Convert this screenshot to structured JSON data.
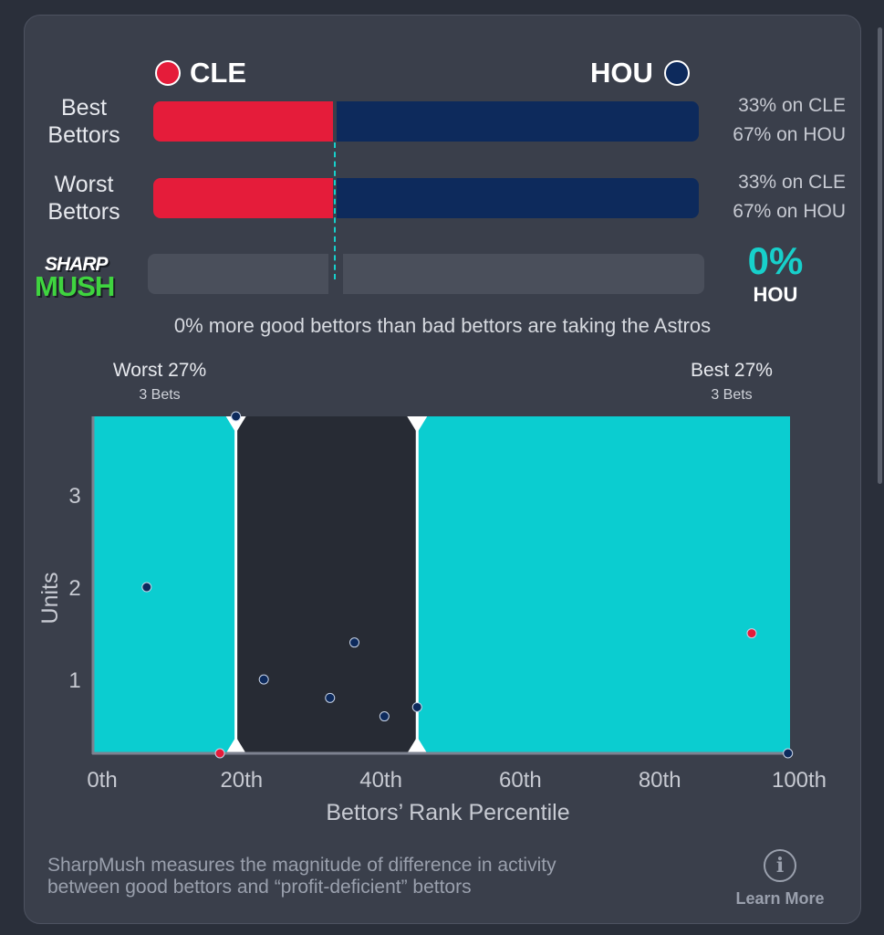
{
  "teams": {
    "left": {
      "abbr": "CLE",
      "color": "#e51c3a"
    },
    "right": {
      "abbr": "HOU",
      "color": "#0d2a5c"
    }
  },
  "rows": [
    {
      "label_line1": "Best",
      "label_line2": "Bettors",
      "left_pct": 33,
      "right_pct": 67,
      "left_text": "33% on CLE",
      "right_text": "67% on HOU"
    },
    {
      "label_line1": "Worst",
      "label_line2": "Bettors",
      "left_pct": 33,
      "right_pct": 67,
      "left_text": "33% on CLE",
      "right_text": "67% on HOU"
    }
  ],
  "logo": {
    "line1": "SHARP",
    "line2": "MUSH"
  },
  "sharpmush": {
    "value": "0%",
    "team": "HOU",
    "accent": "#17d0cb"
  },
  "summary": "0% more good bettors than bad bettors are taking the Astros",
  "zones": {
    "worst": {
      "title": "Worst 27%",
      "sub": "3 Bets"
    },
    "best": {
      "title": "Best 27%",
      "sub": "3 Bets"
    }
  },
  "chart_data": {
    "type": "scatter",
    "xlabel": "Bettors’ Rank Percentile",
    "ylabel": "Units",
    "xlim": [
      0,
      100
    ],
    "ylim": [
      0.2,
      3.85
    ],
    "x_ticks": [
      0,
      20,
      40,
      60,
      80,
      100
    ],
    "x_tick_labels": [
      "0th",
      "20th",
      "40th",
      "60th",
      "80th",
      "100th"
    ],
    "y_ticks": [
      1,
      2,
      3
    ],
    "y_tick_labels": [
      "1",
      "2",
      "3"
    ],
    "shaded_regions": [
      [
        0,
        20.5
      ],
      [
        46.5,
        100
      ]
    ],
    "region_color": "#0bcdd0",
    "markers_at": [
      20.5,
      46.5
    ],
    "points": [
      {
        "x": 7.7,
        "y": 2.0,
        "team": "HOU"
      },
      {
        "x": 20.5,
        "y": 3.85,
        "team": "HOU"
      },
      {
        "x": 18.2,
        "y": 0.2,
        "team": "CLE"
      },
      {
        "x": 24.5,
        "y": 1.0,
        "team": "HOU"
      },
      {
        "x": 34.0,
        "y": 0.8,
        "team": "HOU"
      },
      {
        "x": 37.5,
        "y": 1.4,
        "team": "HOU"
      },
      {
        "x": 41.8,
        "y": 0.6,
        "team": "HOU"
      },
      {
        "x": 46.5,
        "y": 0.7,
        "team": "HOU"
      },
      {
        "x": 94.5,
        "y": 1.5,
        "team": "CLE"
      },
      {
        "x": 99.7,
        "y": 0.2,
        "team": "HOU"
      }
    ]
  },
  "footer": {
    "line1": "SharpMush measures the magnitude of difference in activity",
    "line2": "between good bettors and “profit-deficient” bettors",
    "learn_more": "Learn More"
  }
}
